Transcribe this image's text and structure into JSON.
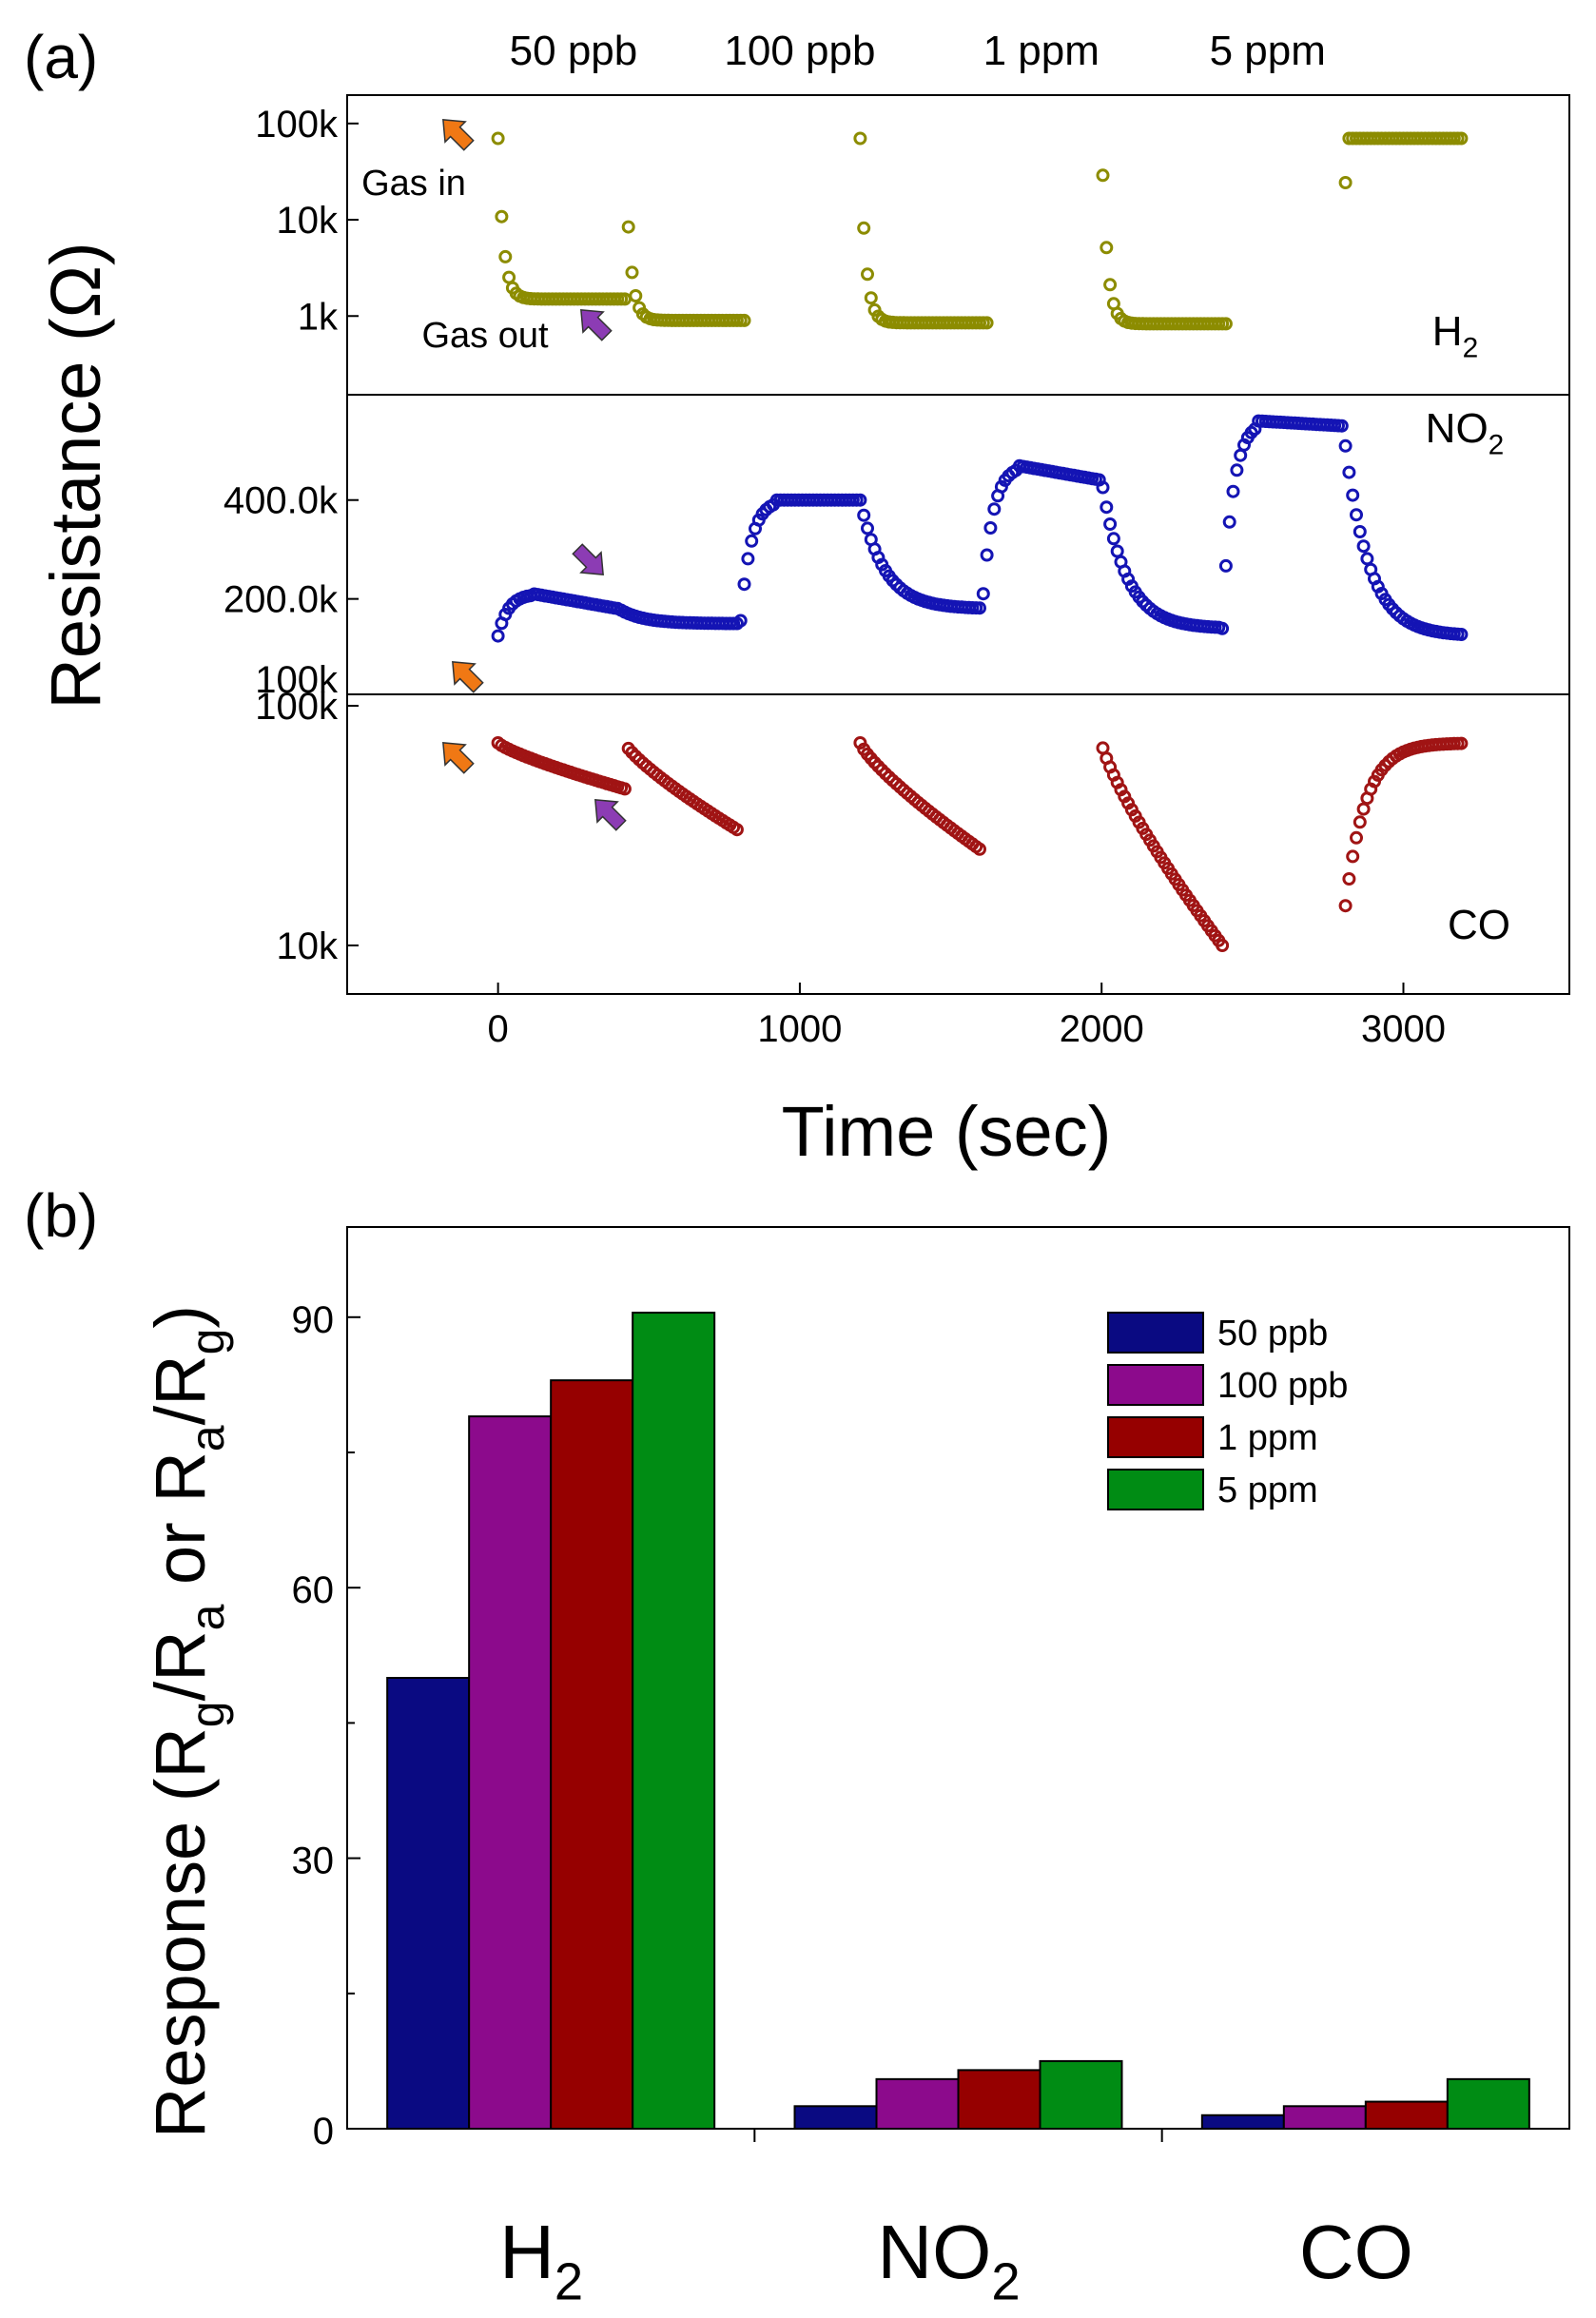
{
  "figure": {
    "panel_a_label": "(a)",
    "panel_b_label": "(b)"
  },
  "chart_data": [
    {
      "type": "scatter",
      "panel": "a",
      "ylabel": "Resistance (Ω)",
      "xlabel": "Time (sec)",
      "xlim": [
        -500,
        3550
      ],
      "xticks": [
        0,
        1000,
        2000,
        3000
      ],
      "xtick_labels": [
        "0",
        "1000",
        "2000",
        "3000"
      ],
      "concentration_labels": [
        {
          "text": "50 ppb",
          "x": 250
        },
        {
          "text": "100 ppb",
          "x": 1000
        },
        {
          "text": "1 ppm",
          "x": 1800
        },
        {
          "text": "5 ppm",
          "x": 2550
        }
      ],
      "subplots": [
        {
          "gas": "H2",
          "label_main": "H",
          "label_sub": "2",
          "color": "#8c8c00",
          "yscale": "log",
          "ylim": [
            200,
            150000
          ],
          "yticks": [
            1000,
            10000,
            100000
          ],
          "ytick_labels": [
            "1k",
            "10k",
            "100k"
          ],
          "annotations": {
            "gas_in": "Gas in",
            "gas_out": "Gas out"
          },
          "cycles": [
            {
              "on": 0,
              "off": 420,
              "baseline": 70000,
              "exposed": 1500
            },
            {
              "on": 420,
              "off": 820,
              "baseline": 70000,
              "exposed": 900
            },
            {
              "on": 1200,
              "off": 1620,
              "baseline": 70000,
              "exposed": 850
            },
            {
              "on": 2000,
              "off": 2420,
              "baseline": 70000,
              "exposed": 830
            },
            {
              "on": 2800,
              "off": 3200,
              "baseline": 70000,
              "exposed": null
            }
          ]
        },
        {
          "gas": "NO2",
          "label_main": "NO",
          "label_sub": "2",
          "color": "#1414b4",
          "yscale": "linear",
          "ylim": [
            30000,
            590000
          ],
          "yticks": [
            200000,
            400000
          ],
          "ytick_labels": [
            "200.0k",
            "400.0k"
          ],
          "extra_tick": {
            "value": 100000,
            "label": "100k"
          },
          "cycles": [
            {
              "on": 0,
              "off": 400,
              "start": 125000,
              "peak": 210000,
              "plateau": 180000,
              "end": 150000
            },
            {
              "on": 800,
              "off": 1200,
              "start": 125000,
              "peak": 400000,
              "plateau": 400000,
              "end": 180000
            },
            {
              "on": 1600,
              "off": 2000,
              "start": 140000,
              "peak": 470000,
              "plateau": 440000,
              "end": 140000
            },
            {
              "on": 2400,
              "off": 2800,
              "start": 140000,
              "peak": 560000,
              "plateau": 550000,
              "end": 125000
            }
          ]
        },
        {
          "gas": "CO",
          "label_main": "CO",
          "label_sub": "",
          "color": "#a01414",
          "yscale": "log",
          "ylim": [
            7000,
            100000
          ],
          "yticks": [
            10000,
            100000
          ],
          "ytick_labels": [
            "10k",
            "100k"
          ],
          "cycles": [
            {
              "on": 0,
              "off": 420,
              "baseline": 70000,
              "exposed": 45000
            },
            {
              "on": 420,
              "off": 800,
              "baseline": 70000,
              "exposed": 30000
            },
            {
              "on": 1200,
              "off": 1600,
              "baseline": 70000,
              "exposed": 25000
            },
            {
              "on": 2000,
              "off": 2400,
              "baseline": 70000,
              "exposed": 10000
            },
            {
              "on": 2800,
              "off": 3200,
              "baseline": 70000,
              "exposed": null
            }
          ]
        }
      ]
    },
    {
      "type": "bar",
      "panel": "b",
      "ylabel_parts": [
        "Response (R",
        "g",
        "/R",
        "a",
        " or R",
        "a",
        "/R",
        "g",
        ")"
      ],
      "categories": [
        {
          "main": "H",
          "sub": "2"
        },
        {
          "main": "NO",
          "sub": "2"
        },
        {
          "main": "CO",
          "sub": ""
        }
      ],
      "ylim": [
        0,
        100
      ],
      "yticks": [
        0,
        30,
        60,
        90
      ],
      "ytick_labels": [
        "0",
        "30",
        "60",
        "90"
      ],
      "legend_position": "top-right",
      "series": [
        {
          "name": "50 ppb",
          "color": "#0a0a82",
          "values": [
            50,
            2.5,
            1.5
          ]
        },
        {
          "name": "100 ppb",
          "color": "#8c0a8c",
          "values": [
            79,
            5.5,
            2.5
          ]
        },
        {
          "name": "1 ppm",
          "color": "#960000",
          "values": [
            83,
            6.5,
            3
          ]
        },
        {
          "name": "5 ppm",
          "color": "#008c14",
          "values": [
            90.5,
            7.5,
            5.5
          ]
        }
      ]
    }
  ]
}
